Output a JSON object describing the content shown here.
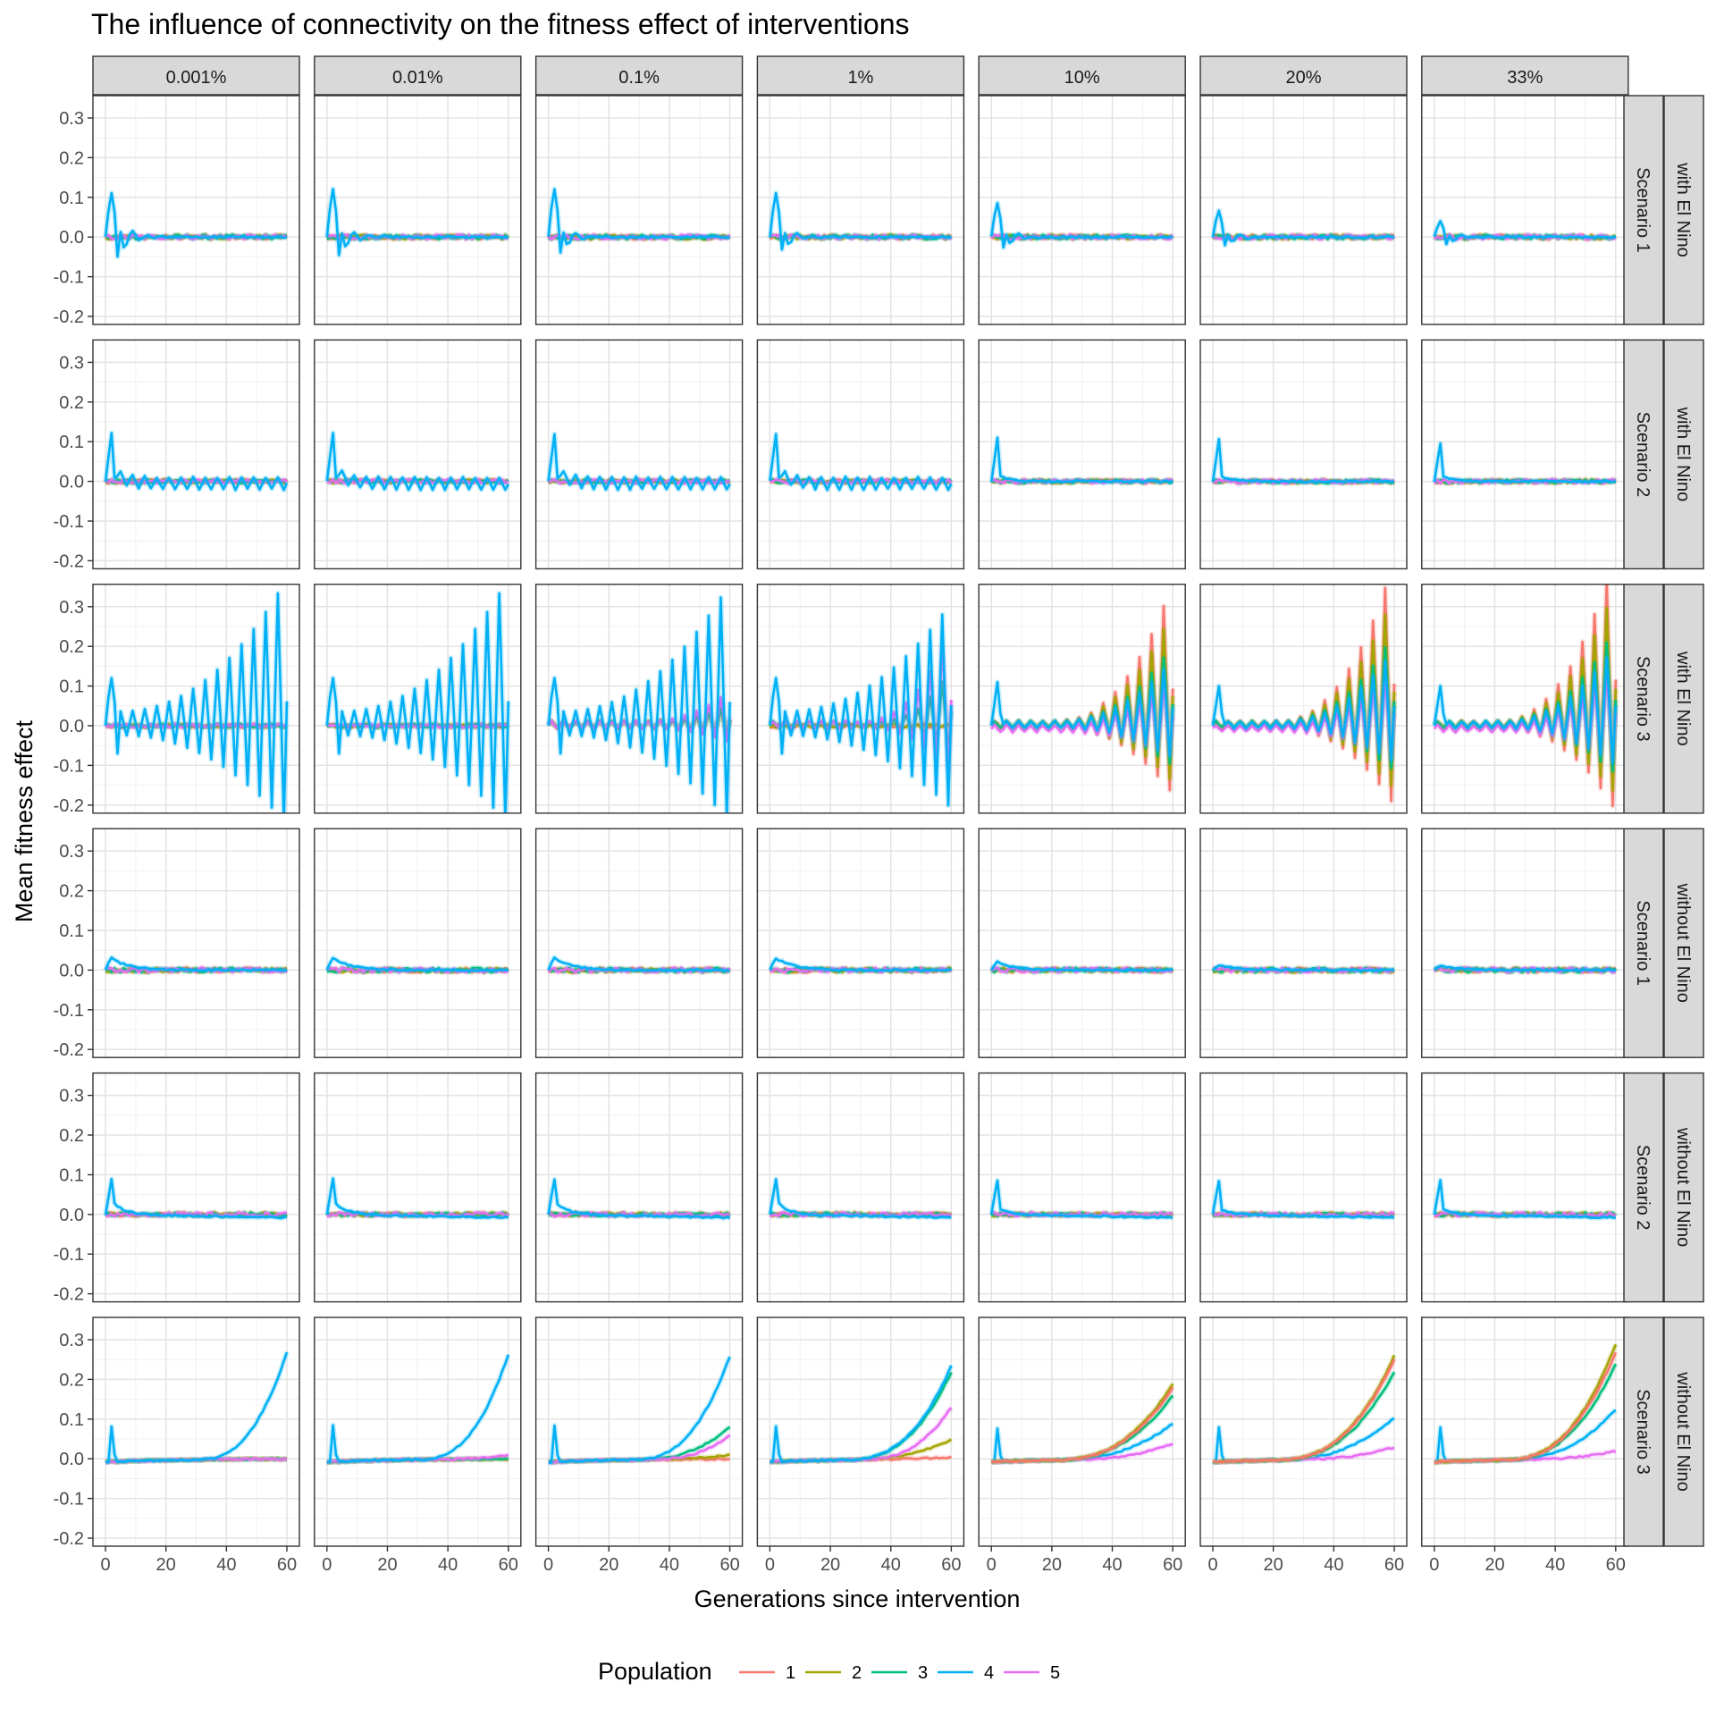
{
  "chart_data": {
    "type": "line",
    "title": "The influence of connectivity on the fitness effect of interventions",
    "xlabel": "Generations since intervention",
    "ylabel": "Mean fitness effect",
    "xlim": [
      0,
      60
    ],
    "ylim": [
      -0.2,
      0.3
    ],
    "x_ticks": [
      "0",
      "20",
      "40",
      "60"
    ],
    "y_ticks": [
      "-0.2",
      "-0.1",
      "0.0",
      "0.1",
      "0.2",
      "0.3"
    ],
    "grid": true,
    "legend_title": "Population",
    "legend_position": "bottom",
    "populations": [
      {
        "name": "1",
        "color": "#F8766D"
      },
      {
        "name": "2",
        "color": "#A3A500"
      },
      {
        "name": "3",
        "color": "#00BF7D"
      },
      {
        "name": "4",
        "color": "#00B0F6"
      },
      {
        "name": "5",
        "color": "#E76BF3"
      }
    ],
    "columns": [
      "0.001%",
      "0.01%",
      "0.1%",
      "1%",
      "10%",
      "20%",
      "33%"
    ],
    "rows": [
      {
        "elnino": "with El Nino",
        "scenario": "Scenario 1"
      },
      {
        "elnino": "with El Nino",
        "scenario": "Scenario 2"
      },
      {
        "elnino": "with El Nino",
        "scenario": "Scenario 3"
      },
      {
        "elnino": "without El Nino",
        "scenario": "Scenario 1"
      },
      {
        "elnino": "without El Nino",
        "scenario": "Scenario 2"
      },
      {
        "elnino": "without El Nino",
        "scenario": "Scenario 3"
      }
    ],
    "panel_summary": {
      "description_of_values": "peak = initial spike of population 4 at generation ~1; final = value at generation 60 per population [1,2,3,4,5]",
      "with_elnino_scenario1_peak4": [
        0.11,
        0.12,
        0.12,
        0.11,
        0.08,
        0.06,
        0.04
      ],
      "with_elnino_scenario2_peak4": [
        0.12,
        0.12,
        0.12,
        0.12,
        0.11,
        0.1,
        0.1
      ],
      "with_elnino_scenario3_peak4": [
        0.12,
        0.12,
        0.12,
        0.12,
        0.11,
        0.1,
        0.1
      ],
      "with_elnino_scenario3_max_oscillation": [
        0.31,
        0.31,
        0.3,
        0.26,
        0.26,
        0.3,
        0.32
      ],
      "without_elnino_scenario1_peak4": [
        0.03,
        0.03,
        0.03,
        0.03,
        0.02,
        0.01,
        0.01
      ],
      "without_elnino_scenario2_peak4": [
        0.09,
        0.09,
        0.09,
        0.09,
        0.085,
        0.085,
        0.085
      ],
      "without_elnino_scenario3_final": [
        [
          0.0,
          0.0,
          0.0,
          0.27,
          0.0
        ],
        [
          0.0,
          0.0,
          0.0,
          0.265,
          0.01
        ],
        [
          0.0,
          0.01,
          0.08,
          0.26,
          0.06
        ],
        [
          0.005,
          0.05,
          0.22,
          0.235,
          0.13
        ],
        [
          0.18,
          0.19,
          0.16,
          0.09,
          0.04
        ],
        [
          0.25,
          0.26,
          0.22,
          0.105,
          0.03
        ],
        [
          0.27,
          0.29,
          0.24,
          0.125,
          0.02
        ]
      ]
    }
  }
}
